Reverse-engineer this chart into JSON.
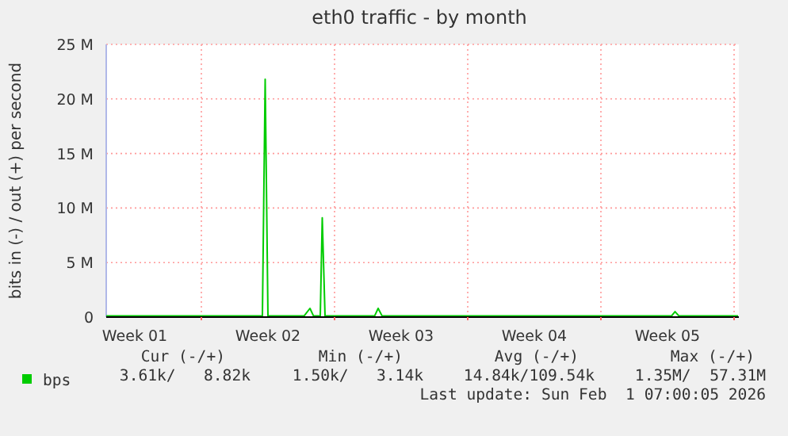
{
  "chart_data": {
    "type": "line",
    "title": "eth0 traffic - by month",
    "ylabel": "bits in (-) / out (+) per second",
    "xlim": [
      "2025-12-31T00:00",
      "2026-02-02T06:00"
    ],
    "xticks": [
      {
        "value": "2026-01-01T12:00",
        "label": "Week 01"
      },
      {
        "value": "2026-01-05",
        "label": null
      },
      {
        "value": "2026-01-08T12:00",
        "label": "Week 02"
      },
      {
        "value": "2026-01-12",
        "label": null
      },
      {
        "value": "2026-01-15T12:00",
        "label": "Week 03"
      },
      {
        "value": "2026-01-19",
        "label": null
      },
      {
        "value": "2026-01-22T12:00",
        "label": "Week 04"
      },
      {
        "value": "2026-01-26",
        "label": null
      },
      {
        "value": "2026-01-29T12:00",
        "label": "Week 05"
      },
      {
        "value": "2026-02-02",
        "label": null
      }
    ],
    "ylim": [
      0,
      25000000
    ],
    "yticks": [
      0,
      {
        "value": 5000000,
        "label": "5 M"
      },
      {
        "value": 10000000,
        "label": "10 M"
      },
      {
        "value": 15000000,
        "label": "15 M"
      },
      {
        "value": 20000000,
        "label": "20 M"
      },
      {
        "value": 25000000,
        "label": "25 M"
      }
    ],
    "grid": true,
    "legend": "bottom",
    "marker": "none",
    "line_style": "solid",
    "series": [
      {
        "name": "bps",
        "color": "#00cc00",
        "x": [
          "2025-12-31",
          "2026-01-02",
          "2026-01-04",
          "2026-01-06",
          "2026-01-08T05:00",
          "2026-01-08T08:30",
          "2026-01-08T12:00",
          "2026-01-10T09:30",
          "2026-01-10T17:00",
          "2026-01-10T21:30",
          "2026-01-11T06:00",
          "2026-01-11T08:30",
          "2026-01-11T12:00",
          "2026-01-14T02:30",
          "2026-01-14T07:00",
          "2026-01-14T12:00",
          "2026-01-18",
          "2026-01-22",
          "2026-01-26",
          "2026-01-29T17:00",
          "2026-01-29T21:30",
          "2026-01-30T02:30",
          "2026-02-02T05:00"
        ],
        "values": [
          100000,
          100000,
          100000,
          100000,
          100000,
          21800000,
          100000,
          100000,
          800000,
          100000,
          100000,
          9100000,
          100000,
          100000,
          800000,
          100000,
          100000,
          100000,
          100000,
          100000,
          500000,
          100000,
          100000
        ]
      }
    ],
    "annotations": [
      "Cur (-/+)",
      "Min (-/+)",
      "Avg (-/+)",
      "Max (-/+)",
      "3.61k/   8.82k",
      "1.50k/   3.14k",
      "14.84k/109.54k",
      "1.35M/  57.31M",
      "Last update: Sun Feb  1 07:00:05 2026"
    ]
  }
}
